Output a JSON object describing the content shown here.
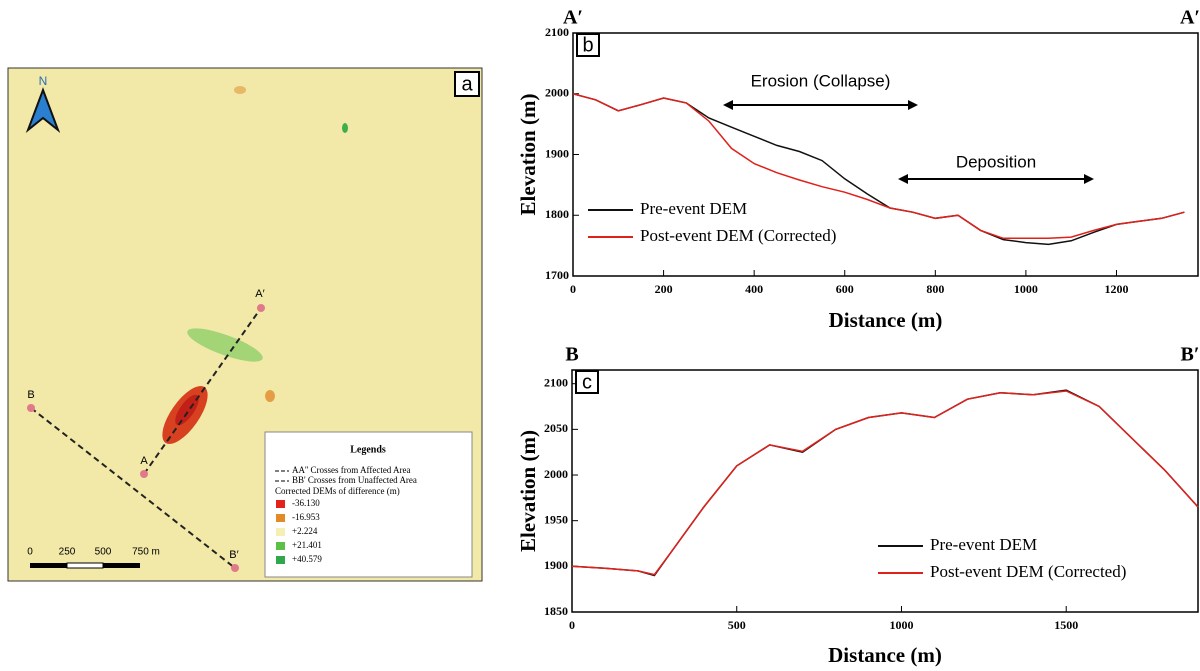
{
  "map": {
    "panel_label": "a",
    "north": "N",
    "points": [
      "A′",
      "A",
      "B",
      "B′"
    ],
    "scale_labels": [
      "0",
      "250",
      "500",
      "750 m"
    ],
    "legend": {
      "title": "Legends",
      "lines": [
        "AA'' Crosses from Affected Area",
        "BB' Crosses from Unaffected Area"
      ],
      "subtitle": "Corrected DEMs of difference (m)",
      "items": [
        {
          "label": "-36.130",
          "color": "#e3231b"
        },
        {
          "label": "-16.953",
          "color": "#e08a2a"
        },
        {
          "label": "+2.224",
          "color": "#f5efb4"
        },
        {
          "label": "+21.401",
          "color": "#5cc046"
        },
        {
          "label": "+40.579",
          "color": "#2ea84a"
        }
      ]
    }
  },
  "chart_data": [
    {
      "type": "line",
      "panel_label": "b",
      "start_label": "A′",
      "end_label": "A′",
      "x_label": "Distance (m)",
      "y_label": "Elevation (m)",
      "x": [
        0,
        50,
        100,
        150,
        200,
        250,
        300,
        350,
        400,
        450,
        500,
        550,
        600,
        650,
        700,
        750,
        800,
        850,
        900,
        950,
        1000,
        1050,
        1100,
        1150,
        1200,
        1250,
        1300,
        1350
      ],
      "series": [
        {
          "name": "Pre-event DEM",
          "color": "#111111",
          "values": [
            2000,
            1990,
            1972,
            1982,
            1993,
            1985,
            1960,
            1945,
            1930,
            1915,
            1905,
            1890,
            1860,
            1835,
            1812,
            1805,
            1795,
            1800,
            1775,
            1760,
            1755,
            1752,
            1758,
            1772,
            1785,
            1790,
            1795,
            1805
          ]
        },
        {
          "name": "Post-event DEM (Corrected)",
          "color": "#e0201b",
          "values": [
            2000,
            1990,
            1972,
            1982,
            1993,
            1985,
            1955,
            1910,
            1885,
            1870,
            1858,
            1847,
            1838,
            1826,
            1812,
            1805,
            1795,
            1800,
            1775,
            1762,
            1762,
            1762,
            1764,
            1775,
            1785,
            1790,
            1795,
            1805
          ]
        }
      ],
      "annotations": [
        "Erosion (Collapse)",
        "Deposition"
      ],
      "xlim": [
        0,
        1380
      ],
      "xticks": [
        0,
        200,
        400,
        600,
        800,
        1000,
        1200
      ],
      "ylim": [
        1700,
        2100
      ],
      "yticks": [
        1700,
        1800,
        1900,
        2000,
        2100
      ],
      "legend": "lower left"
    },
    {
      "type": "line",
      "panel_label": "c",
      "start_label": "B",
      "end_label": "B′",
      "x_label": "Distance (m)",
      "y_label": "Elevation (m)",
      "x": [
        0,
        100,
        200,
        250,
        300,
        400,
        500,
        600,
        700,
        800,
        900,
        1000,
        1100,
        1200,
        1300,
        1400,
        1500,
        1600,
        1700,
        1800,
        1900
      ],
      "series": [
        {
          "name": "Pre-event DEM",
          "color": "#111111",
          "values": [
            1900,
            1898,
            1895,
            1890,
            1915,
            1965,
            2010,
            2033,
            2025,
            2050,
            2063,
            2068,
            2063,
            2083,
            2090,
            2088,
            2093,
            2075,
            2040,
            2005,
            1965
          ]
        },
        {
          "name": "Post-event DEM (Corrected)",
          "color": "#e0201b",
          "values": [
            1900,
            1898,
            1895,
            1891,
            1915,
            1965,
            2010,
            2033,
            2026,
            2050,
            2063,
            2068,
            2063,
            2083,
            2090,
            2088,
            2092,
            2075,
            2040,
            2005,
            1965
          ]
        }
      ],
      "xlim": [
        0,
        1900
      ],
      "xticks": [
        0,
        500,
        1000,
        1500
      ],
      "ylim": [
        1850,
        2115
      ],
      "yticks": [
        1850,
        1900,
        1950,
        2000,
        2050,
        2100
      ],
      "legend": "lower right"
    }
  ]
}
